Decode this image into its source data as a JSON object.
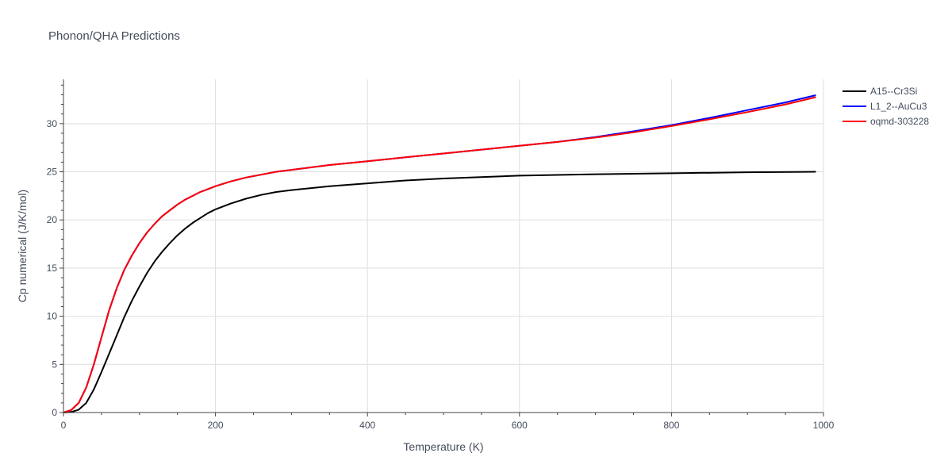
{
  "chart_data": {
    "type": "line",
    "title": "Phonon/QHA Predictions",
    "xlabel": "Temperature (K)",
    "ylabel": "Cp numerical (J/K/mol)",
    "xlim": [
      0,
      1000
    ],
    "ylim": [
      0,
      34.6
    ],
    "xticks": [
      0,
      200,
      400,
      600,
      800,
      1000
    ],
    "yticks": [
      0,
      5,
      10,
      15,
      20,
      25,
      30
    ],
    "grid": true,
    "legend_position": "top-right",
    "series": [
      {
        "name": "A15--Cr3Si",
        "color": "#000000",
        "x": [
          0,
          10,
          20,
          30,
          40,
          50,
          60,
          70,
          80,
          90,
          100,
          110,
          120,
          130,
          140,
          150,
          160,
          170,
          180,
          190,
          200,
          220,
          240,
          260,
          280,
          300,
          350,
          400,
          450,
          500,
          600,
          700,
          800,
          900,
          990
        ],
        "y": [
          0,
          0.05,
          0.3,
          1.0,
          2.4,
          4.2,
          6.1,
          8.0,
          9.9,
          11.6,
          13.1,
          14.5,
          15.7,
          16.7,
          17.6,
          18.4,
          19.1,
          19.7,
          20.2,
          20.7,
          21.1,
          21.7,
          22.2,
          22.6,
          22.9,
          23.1,
          23.5,
          23.8,
          24.1,
          24.3,
          24.6,
          24.75,
          24.85,
          24.95,
          25.0
        ]
      },
      {
        "name": "L1_2--AuCu3",
        "color": "#0000ff",
        "x": [
          0,
          10,
          20,
          30,
          40,
          50,
          60,
          70,
          80,
          90,
          100,
          110,
          120,
          130,
          140,
          150,
          160,
          170,
          180,
          190,
          200,
          220,
          240,
          260,
          280,
          300,
          350,
          400,
          450,
          500,
          550,
          600,
          650,
          700,
          750,
          800,
          850,
          900,
          950,
          990
        ],
        "y": [
          0,
          0.25,
          1.0,
          2.6,
          5.0,
          7.8,
          10.6,
          12.9,
          14.8,
          16.3,
          17.6,
          18.7,
          19.6,
          20.4,
          21.0,
          21.6,
          22.1,
          22.5,
          22.9,
          23.2,
          23.5,
          24.0,
          24.4,
          24.7,
          25.0,
          25.2,
          25.7,
          26.1,
          26.5,
          26.9,
          27.3,
          27.7,
          28.1,
          28.6,
          29.2,
          29.85,
          30.6,
          31.4,
          32.2,
          32.95
        ]
      },
      {
        "name": "oqmd-303228",
        "color": "#ff0000",
        "x": [
          0,
          10,
          20,
          30,
          40,
          50,
          60,
          70,
          80,
          90,
          100,
          110,
          120,
          130,
          140,
          150,
          160,
          170,
          180,
          190,
          200,
          220,
          240,
          260,
          280,
          300,
          350,
          400,
          450,
          500,
          550,
          600,
          650,
          700,
          750,
          800,
          850,
          900,
          950,
          990
        ],
        "y": [
          0,
          0.25,
          1.0,
          2.6,
          5.0,
          7.8,
          10.6,
          12.9,
          14.8,
          16.3,
          17.6,
          18.7,
          19.6,
          20.4,
          21.0,
          21.6,
          22.1,
          22.5,
          22.9,
          23.2,
          23.5,
          24.0,
          24.4,
          24.7,
          25.0,
          25.2,
          25.7,
          26.1,
          26.5,
          26.9,
          27.3,
          27.7,
          28.1,
          28.55,
          29.1,
          29.75,
          30.45,
          31.2,
          32.0,
          32.75
        ]
      }
    ]
  }
}
